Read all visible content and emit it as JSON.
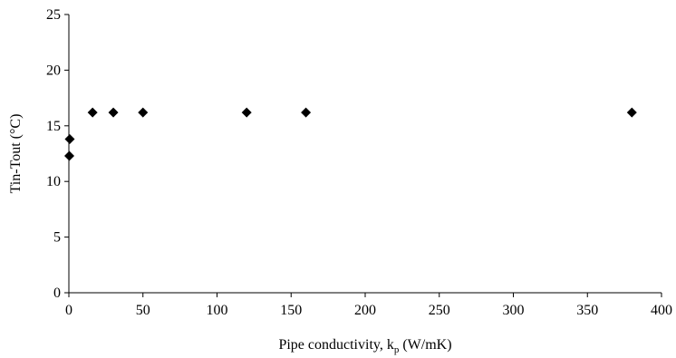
{
  "chart_data": {
    "type": "scatter",
    "title": "",
    "xlabel": "Pipe conductivity, k",
    "xlabel_subscript": "p",
    "xlabel_suffix": " (W/mK)",
    "ylabel": "Tin-Tout (°C)",
    "xlim": [
      0,
      400
    ],
    "ylim": [
      0,
      25
    ],
    "x_ticks": [
      "0",
      "50",
      "100",
      "150",
      "200",
      "250",
      "300",
      "350",
      "400"
    ],
    "y_ticks": [
      "0",
      "5",
      "10",
      "15",
      "20",
      "25"
    ],
    "grid": false,
    "legend": "none",
    "marker": "diamond",
    "marker_color": "#000000",
    "series": [
      {
        "points": [
          {
            "x": 0.3,
            "y": 12.3
          },
          {
            "x": 0.6,
            "y": 13.8
          },
          {
            "x": 16,
            "y": 16.2
          },
          {
            "x": 30,
            "y": 16.2
          },
          {
            "x": 50,
            "y": 16.2
          },
          {
            "x": 120,
            "y": 16.2
          },
          {
            "x": 160,
            "y": 16.2
          },
          {
            "x": 380,
            "y": 16.2
          }
        ]
      }
    ]
  }
}
